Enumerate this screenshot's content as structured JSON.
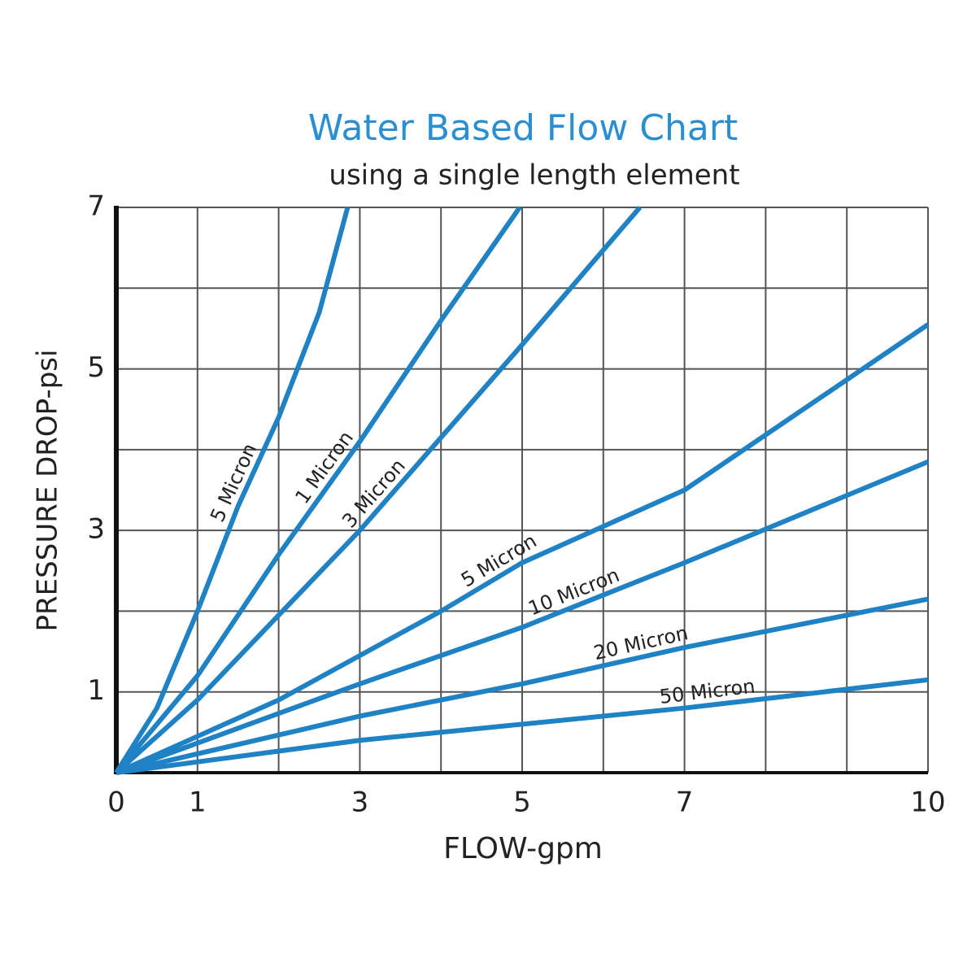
{
  "chart_data": {
    "type": "line",
    "title": "Water Based Flow Chart",
    "subtitle": "using a single length element",
    "x_label": "FLOW-gpm",
    "y_label": "PRESSURE DROP-psi",
    "xlim": [
      0,
      10
    ],
    "ylim": [
      0,
      7
    ],
    "xticks": [
      0,
      1,
      3,
      5,
      7,
      10
    ],
    "yticks": [
      1,
      3,
      5,
      7
    ],
    "xgrid": [
      0,
      1,
      2,
      3,
      4,
      5,
      6,
      7,
      8,
      9,
      10
    ],
    "ygrid": [
      0,
      1,
      2,
      3,
      4,
      5,
      6,
      7
    ],
    "grid": true,
    "series": [
      {
        "name": "5 Micron",
        "color": "#1f82c4",
        "x": [
          0,
          0.5,
          1,
          1.5,
          2,
          2.5,
          2.85
        ],
        "values": [
          0,
          0.8,
          2.0,
          3.3,
          4.4,
          5.7,
          7
        ]
      },
      {
        "name": "1 Micron",
        "color": "#1f82c4",
        "x": [
          0,
          1,
          2,
          3,
          4,
          4.97
        ],
        "values": [
          0,
          1.2,
          2.7,
          4.1,
          5.6,
          7
        ]
      },
      {
        "name": "3 Micron",
        "color": "#1f82c4",
        "x": [
          0,
          1,
          3,
          5,
          6.45
        ],
        "values": [
          0,
          0.9,
          3.0,
          5.3,
          7
        ]
      },
      {
        "name": "5 Micron",
        "color": "#1f82c4",
        "x": [
          0,
          2,
          4,
          5,
          7,
          10
        ],
        "values": [
          0,
          0.9,
          2.0,
          2.6,
          3.5,
          5.55
        ]
      },
      {
        "name": "10 Micron",
        "color": "#1f82c4",
        "x": [
          0,
          3,
          5,
          7,
          10
        ],
        "values": [
          0,
          1.1,
          1.8,
          2.6,
          3.85
        ]
      },
      {
        "name": "20 Micron",
        "color": "#1f82c4",
        "x": [
          0,
          3,
          5,
          7,
          10
        ],
        "values": [
          0,
          0.7,
          1.1,
          1.55,
          2.15
        ]
      },
      {
        "name": "50 Micron",
        "color": "#1f82c4",
        "x": [
          0,
          3,
          5,
          7,
          10
        ],
        "values": [
          0,
          0.4,
          0.6,
          0.8,
          1.15
        ]
      }
    ]
  }
}
